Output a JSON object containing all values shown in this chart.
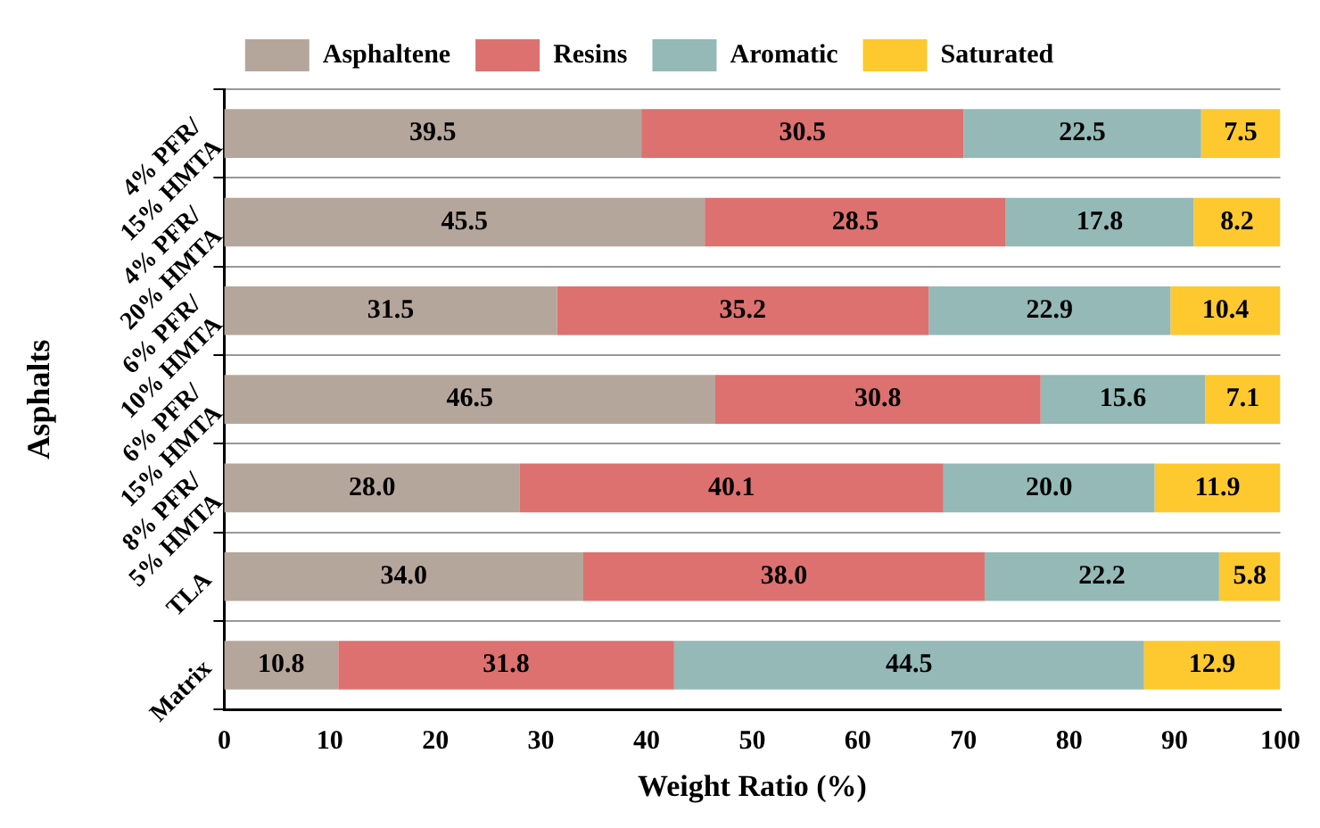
{
  "chart_data": {
    "type": "bar",
    "orientation": "horizontal",
    "stacked": true,
    "xlabel": "Weight Ratio (%)",
    "ylabel": "Asphalts",
    "categories": [
      "4% PFR/15% HMTA",
      "4% PFR/20% HMTA",
      "6% PFR/10% HMTA",
      "6% PFR/15% HMTA",
      "8% PFR/5% HMTA",
      "TLA",
      "Matrix"
    ],
    "series": [
      {
        "name": "Asphaltene",
        "color": "#b5a69c",
        "values": [
          39.5,
          45.5,
          31.5,
          46.5,
          28.0,
          34.0,
          10.8
        ],
        "value_labels": [
          "39.5",
          "45.5",
          "31.5",
          "46.5",
          "28.0",
          "34.0",
          "10.8"
        ]
      },
      {
        "name": "Resins",
        "color": "#dc7170",
        "values": [
          30.5,
          28.5,
          35.2,
          30.8,
          40.1,
          38.0,
          31.8
        ],
        "value_labels": [
          "30.5",
          "28.5",
          "35.2",
          "30.8",
          "40.1",
          "38.0",
          "31.8"
        ]
      },
      {
        "name": "Aromatic",
        "color": "#94b9b7",
        "values": [
          22.5,
          17.8,
          22.9,
          15.6,
          20.0,
          22.2,
          44.5
        ],
        "value_labels": [
          "22.5",
          "17.8",
          "22.9",
          "15.6",
          "20.0",
          "22.2",
          "44.5"
        ]
      },
      {
        "name": "Saturated",
        "color": "#fdc92f",
        "values": [
          7.5,
          8.2,
          10.4,
          7.1,
          11.9,
          5.8,
          12.9
        ],
        "value_labels": [
          "7.5",
          "8.2",
          "10.4",
          "7.1",
          "11.9",
          "5.8",
          "12.9"
        ]
      }
    ],
    "xlim": [
      0,
      100
    ],
    "xticks": [
      0,
      10,
      20,
      30,
      40,
      50,
      60,
      70,
      80,
      90,
      100
    ],
    "grid": "y",
    "legend": "top"
  }
}
